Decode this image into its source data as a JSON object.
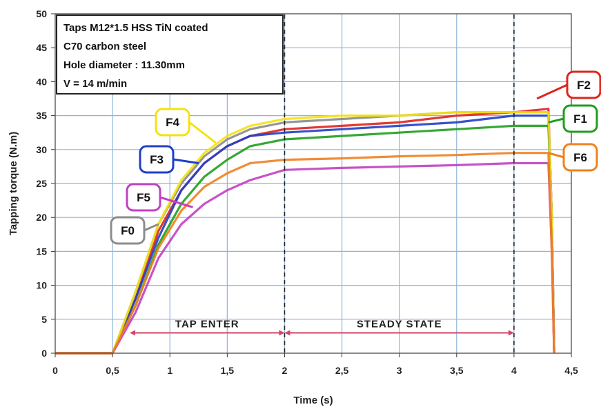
{
  "chart_data": {
    "type": "line",
    "xlabel": "Time (s)",
    "ylabel": "Tapping torque (N.m)",
    "xlim": [
      0,
      4.5
    ],
    "ylim": [
      0,
      50
    ],
    "x_ticks": [
      "0",
      "0,5",
      "1",
      "1,5",
      "2",
      "2,5",
      "3",
      "3,5",
      "4",
      "4,5"
    ],
    "y_ticks": [
      "0",
      "5",
      "10",
      "15",
      "20",
      "25",
      "30",
      "35",
      "40",
      "45",
      "50"
    ],
    "grid": true,
    "info_box": [
      "Taps M12*1.5 HSS TiN coated",
      "C70 carbon steel",
      "Hole diameter : 11.30mm",
      "V = 14 m/min"
    ],
    "phases": [
      {
        "label": "TAP ENTER",
        "x_start": 0.65,
        "x_end": 2.0
      },
      {
        "label": "STEADY STATE",
        "x_start": 2.0,
        "x_end": 4.0
      }
    ],
    "phase_boundaries": [
      2.0,
      4.0
    ],
    "series": [
      {
        "name": "F0",
        "color": "#8c8c8c",
        "x": [
          0,
          0.5,
          0.7,
          0.9,
          1.1,
          1.3,
          1.5,
          1.7,
          2.0,
          2.5,
          3.0,
          3.5,
          4.0,
          4.3,
          4.33,
          4.35
        ],
        "y": [
          0,
          0,
          9,
          19,
          25,
          29,
          31.5,
          33,
          34,
          34.5,
          35,
          35.5,
          35.5,
          35.5,
          20,
          0
        ]
      },
      {
        "name": "F1",
        "color": "#1e9e1e",
        "x": [
          0,
          0.5,
          0.7,
          0.9,
          1.1,
          1.3,
          1.5,
          1.7,
          2.0,
          2.5,
          3.0,
          3.5,
          4.0,
          4.3,
          4.33,
          4.35
        ],
        "y": [
          0,
          0,
          7,
          16,
          22,
          26,
          28.5,
          30.5,
          31.5,
          32,
          32.5,
          33,
          33.5,
          33.5,
          20,
          0
        ]
      },
      {
        "name": "F2",
        "color": "#e0241b",
        "x": [
          0,
          0.5,
          0.7,
          0.9,
          1.1,
          1.3,
          1.5,
          1.7,
          2.0,
          2.5,
          3.0,
          3.5,
          4.0,
          4.3,
          4.33,
          4.35
        ],
        "y": [
          0,
          0,
          8,
          18,
          24,
          28,
          30.5,
          32,
          33,
          33.5,
          34,
          35,
          35.5,
          36,
          20,
          0
        ]
      },
      {
        "name": "F3",
        "color": "#1f3fc8",
        "x": [
          0,
          0.5,
          0.7,
          0.9,
          1.1,
          1.3,
          1.5,
          1.7,
          2.0,
          2.5,
          3.0,
          3.5,
          4.0,
          4.3,
          4.33,
          4.35
        ],
        "y": [
          0,
          0,
          8,
          17,
          24,
          28,
          30.5,
          32,
          32.5,
          33,
          33.5,
          34,
          35,
          35,
          20,
          0
        ]
      },
      {
        "name": "F4",
        "color": "#f5e20f",
        "x": [
          0,
          0.5,
          0.7,
          0.9,
          1.1,
          1.3,
          1.5,
          1.7,
          2.0,
          2.5,
          3.0,
          3.5,
          4.0,
          4.3,
          4.33,
          4.35
        ],
        "y": [
          0,
          0,
          9,
          19,
          25.5,
          29.5,
          32,
          33.5,
          34.5,
          35,
          35,
          35.5,
          35.5,
          35.5,
          20,
          0
        ]
      },
      {
        "name": "F5",
        "color": "#c23fc2",
        "x": [
          0,
          0.5,
          0.7,
          0.9,
          1.1,
          1.3,
          1.5,
          1.7,
          2.0,
          2.5,
          3.0,
          3.5,
          4.0,
          4.3,
          4.33,
          4.35
        ],
        "y": [
          0,
          0,
          6,
          14,
          19,
          22,
          24,
          25.5,
          27,
          27.3,
          27.5,
          27.7,
          28,
          28,
          15,
          0
        ]
      },
      {
        "name": "F6",
        "color": "#f0801e",
        "x": [
          0,
          0.5,
          0.7,
          0.9,
          1.1,
          1.3,
          1.5,
          1.7,
          2.0,
          2.5,
          3.0,
          3.5,
          4.0,
          4.3,
          4.33,
          4.35
        ],
        "y": [
          0,
          0,
          7,
          15.5,
          21,
          24.5,
          26.5,
          28,
          28.5,
          28.7,
          29,
          29.2,
          29.5,
          29.5,
          15,
          0
        ]
      }
    ],
    "callouts": [
      {
        "label": "F2",
        "color": "#e0241b",
        "points_to": [
          4.2,
          37.5
        ]
      },
      {
        "label": "F1",
        "color": "#1e9e1e",
        "points_to": [
          4.3,
          34
        ]
      },
      {
        "label": "F6",
        "color": "#f0801e",
        "points_to": [
          4.3,
          29.5
        ]
      },
      {
        "label": "F4",
        "color": "#f5e20f",
        "points_to": [
          1.4,
          31
        ]
      },
      {
        "label": "F3",
        "color": "#1f3fc8",
        "points_to": [
          1.25,
          28
        ]
      },
      {
        "label": "F5",
        "color": "#c23fc2",
        "points_to": [
          1.2,
          21.5
        ]
      },
      {
        "label": "F0",
        "color": "#8c8c8c",
        "points_to": [
          0.9,
          19
        ]
      }
    ]
  }
}
